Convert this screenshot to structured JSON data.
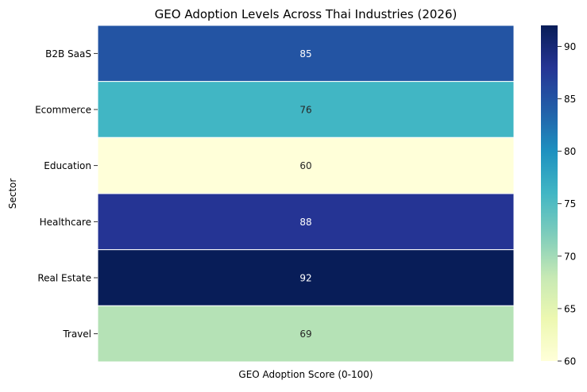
{
  "chart_data": {
    "type": "heatmap",
    "title": "GEO Adoption Levels Across Thai Industries (2026)",
    "xlabel": "GEO Adoption Score (0-100)",
    "ylabel": "Sector",
    "categories": [
      "B2B SaaS",
      "Ecommerce",
      "Education",
      "Healthcare",
      "Real Estate",
      "Travel"
    ],
    "values": [
      85,
      76,
      60,
      88,
      92,
      69
    ],
    "colormap": "YlGnBu",
    "colorbar": {
      "range": [
        60,
        92
      ],
      "ticks": [
        60,
        65,
        70,
        75,
        80,
        85,
        90
      ]
    }
  }
}
